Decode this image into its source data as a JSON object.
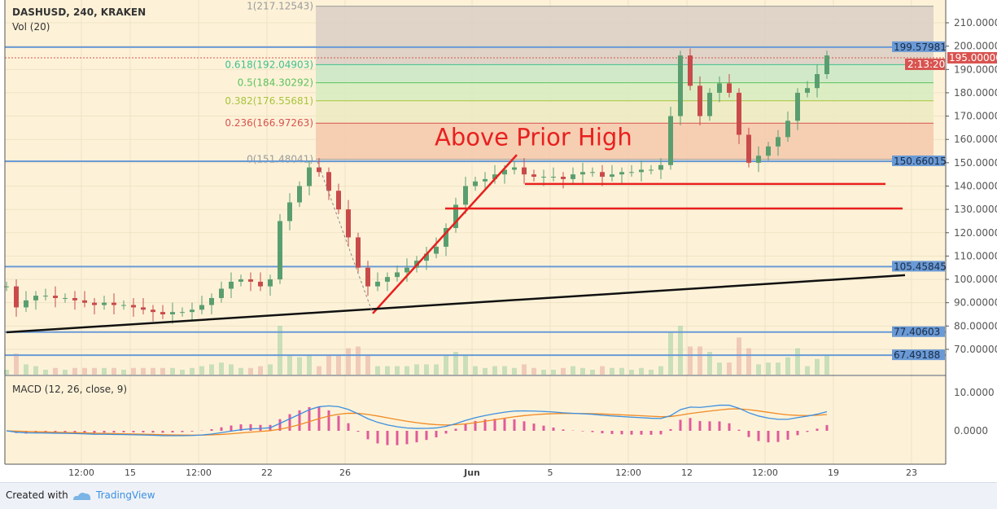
{
  "header": {
    "symbol": "DASHUSD, 240, KRAKEN",
    "volume_label": "Vol (20)",
    "macd_label": "MACD (12, 26, close, 9)"
  },
  "footer": {
    "created_with": "Created with",
    "brand": "TradingView"
  },
  "colors": {
    "background": "#fdf2d8",
    "up": "#5a9e6f",
    "down": "#c94a4a",
    "hline": "#6a9ad6",
    "annotation": "#e8201f",
    "trend": "#111111",
    "macd": "#3d8fe0",
    "signal": "#f08a24",
    "hist": "#e05a9a"
  },
  "chart_data": {
    "type": "candlestick",
    "title": "DASHUSD, 240, KRAKEN",
    "ylim": [
      62,
      218
    ],
    "y_ticks": [
      "210.00000",
      "200.00000",
      "190.00000",
      "180.00000",
      "170.00000",
      "160.00000",
      "150.00000",
      "140.00000",
      "130.00000",
      "120.00000",
      "110.00000",
      "100.00000",
      "90.00000",
      "80.00000",
      "70.00000"
    ],
    "y_tick_values": [
      210,
      200,
      190,
      180,
      170,
      160,
      150,
      140,
      130,
      120,
      110,
      100,
      90,
      80,
      70
    ],
    "x_ticks": [
      {
        "label": "12:00",
        "date": "May 12 12:00"
      },
      {
        "label": "15",
        "date": "May 15 00:00"
      },
      {
        "label": "12:00",
        "date": "May 18 12:00"
      },
      {
        "label": "22",
        "date": "May 22 00:00"
      },
      {
        "label": "26",
        "date": "May 26 00:00"
      },
      {
        "label": "Jun",
        "date": "Jun 1 12:00"
      },
      {
        "label": "5",
        "date": "Jun 5 12:00"
      },
      {
        "label": "12:00",
        "date": "Jun 9 12:00"
      },
      {
        "label": "12",
        "date": "Jun 12 12:00"
      },
      {
        "label": "12:00",
        "date": "Jun 16 12:00"
      },
      {
        "label": "19",
        "date": "Jun 20 00:00"
      },
      {
        "label": "23",
        "date": "Jun 24 00:00"
      }
    ],
    "series_start": "May 8 16:00",
    "interval_hours": 12,
    "closes": [
      97,
      88,
      91,
      93,
      93,
      92,
      92,
      91,
      90,
      89,
      90,
      89,
      89,
      88,
      87,
      86,
      85,
      86,
      86,
      87,
      89,
      92,
      96,
      99,
      100,
      99,
      97,
      100,
      125,
      133,
      140,
      148,
      146,
      138,
      130,
      118,
      105,
      97,
      99,
      101,
      103,
      105,
      108,
      111,
      114,
      122,
      132,
      140,
      142,
      143,
      145,
      147,
      148,
      145,
      144,
      144,
      144,
      143,
      145,
      146,
      146,
      144,
      145,
      146,
      146,
      147,
      147,
      149,
      170,
      196,
      183,
      170,
      180,
      184,
      180,
      162,
      150,
      153,
      157,
      161,
      168,
      180,
      182,
      188,
      196
    ],
    "fib_levels": [
      {
        "label": "1(217.12543)",
        "value": 217.12543,
        "color": "#9a9a9a",
        "fill": "#d9cfc4"
      },
      {
        "label": "0.618(192.04903)",
        "value": 192.04903,
        "color": "#3fbf8f",
        "fill": "#c9e8c6"
      },
      {
        "label": "0.5(184.30292)",
        "value": 184.30292,
        "color": "#5cc25c",
        "fill": "#d6ecc0"
      },
      {
        "label": "0.382(176.55681)",
        "value": 176.55681,
        "color": "#a8c43c",
        "fill": "#ecebc2"
      },
      {
        "label": "0.236(166.97263)",
        "value": 166.97263,
        "color": "#d9534f",
        "fill": "#f5c9ad"
      },
      {
        "label": "0(151.48041)",
        "value": 151.48041,
        "color": "#9a9a9a",
        "fill": null
      }
    ],
    "horizontal_levels": [
      {
        "label": "199.57981",
        "value": 199.57981
      },
      {
        "label": "150.66015",
        "value": 150.66015
      },
      {
        "label": "105.45845",
        "value": 105.45845
      },
      {
        "label": "77.40603",
        "value": 77.40603
      },
      {
        "label": "67.49188",
        "value": 67.49188
      }
    ],
    "last_price": {
      "label": "195.00000",
      "value": 195.0,
      "countdown": "2:13:20"
    },
    "annotation": {
      "text": "Above Prior High",
      "date": "May 30 14:00",
      "value": 161
    },
    "drawings": [
      {
        "kind": "red-trendline",
        "from": [
          "May 27 10:00",
          85.4
        ],
        "to": [
          "Jun 3 19:00",
          153.4
        ]
      },
      {
        "kind": "black-trendline",
        "from": [
          "May 8 16:00",
          77.3
        ],
        "to": [
          "Jun 23 16:00",
          101.8
        ]
      },
      {
        "kind": "red-support",
        "from": [
          "Jun 4 05:00",
          140.9
        ],
        "to": [
          "Jun 22 16:00",
          140.9
        ]
      },
      {
        "kind": "red-support",
        "from": [
          "May 31 03:00",
          130.4
        ],
        "to": [
          "Jun 23 13:00",
          130.4
        ]
      },
      {
        "kind": "dashed-projection",
        "from": [
          "May 24 14:00",
          150.5
        ],
        "to": [
          "May 27 10:00",
          85.4
        ]
      }
    ],
    "macd": {
      "fast": 12,
      "slow": 26,
      "signal": 9,
      "y_ticks": [
        "10.0000",
        "0.0000"
      ],
      "y_tick_values": [
        10,
        0
      ]
    }
  }
}
